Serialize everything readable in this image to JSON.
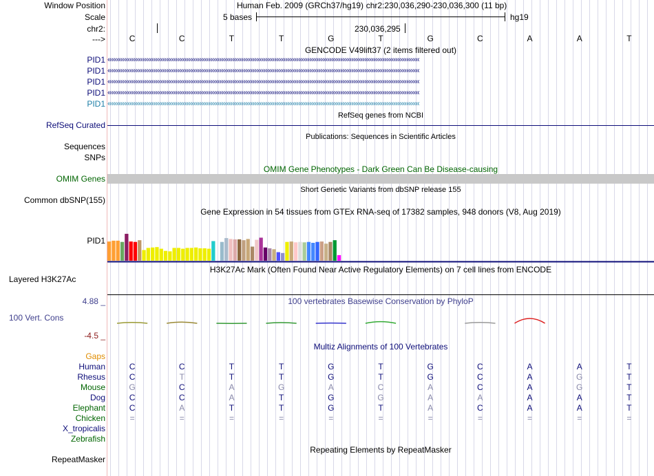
{
  "sidebar": {
    "window_position": "Window Position",
    "scale": "Scale",
    "chrom": "chr2:",
    "strand_arrow": "--->",
    "genes": [
      "PID1",
      "PID1",
      "PID1",
      "PID1",
      "PID1"
    ],
    "refseq": "RefSeq Curated",
    "sequences": "Sequences",
    "snps": "SNPs",
    "omim": "OMIM Genes",
    "dbsnp": "Common dbSNP(155)",
    "gtex_gene": "PID1",
    "h3k27ac": "Layered H3K27Ac",
    "cons_max": "4.88 _",
    "cons_label": "100 Vert. Cons",
    "cons_min": "-4.5 _",
    "gaps": "Gaps",
    "species": [
      "Human",
      "Rhesus",
      "Mouse",
      "Dog",
      "Elephant",
      "Chicken",
      "X_tropicalis",
      "Zebrafish"
    ],
    "repeatmasker": "RepeatMasker"
  },
  "header": {
    "assembly": "Human Feb. 2009 (GRCh37/hg19)",
    "position": "chr2:230,036,290-230,036,300 (11 bp)",
    "scale_text": "5 bases",
    "db": "hg19",
    "coord": "230,036,295"
  },
  "bases": [
    "C",
    "C",
    "T",
    "T",
    "G",
    "T",
    "G",
    "C",
    "A",
    "A",
    "T"
  ],
  "tracks": {
    "gencode_title": "GENCODE V49lift37 (2 items filtered out)",
    "refseq_title": "RefSeq genes from NCBI",
    "pubs_title": "Publications: Sequences in Scientific Articles",
    "omim_title": "OMIM Gene Phenotypes - Dark Green Can Be Disease-causing",
    "dbsnp_title": "Short Genetic Variants from dbSNP release 155",
    "gtex_title": "Gene Expression in 54 tissues from GTEx RNA-seq of 17382 samples, 948 donors (V8, Aug 2019)",
    "h3k27ac_title": "H3K27Ac Mark (Often Found Near Active Regulatory Elements) on 7 cell lines from ENCODE",
    "cons_title": "100 vertebrates Basewise Conservation by PhyloP",
    "multiz_title": "Multiz Alignments of 100 Vertebrates",
    "rmsk_title": "Repeating Elements by RepeatMasker"
  },
  "alignment": {
    "Human": [
      "C",
      "C",
      "T",
      "T",
      "G",
      "T",
      "G",
      "C",
      "A",
      "A",
      "T"
    ],
    "Rhesus": [
      "C",
      "T",
      "T",
      "T",
      "G",
      "T",
      "G",
      "C",
      "A",
      "G",
      "T"
    ],
    "Mouse": [
      "G",
      "C",
      "A",
      "G",
      "A",
      "C",
      "A",
      "C",
      "A",
      "G",
      "T"
    ],
    "Dog": [
      "C",
      "C",
      "A",
      "T",
      "G",
      "G",
      "A",
      "A",
      "A",
      "A",
      "T"
    ],
    "Elephant": [
      "C",
      "A",
      "T",
      "T",
      "G",
      "T",
      "A",
      "C",
      "A",
      "A",
      "T"
    ],
    "Chicken": [
      "=",
      "=",
      "=",
      "=",
      "=",
      "=",
      "=",
      "=",
      "=",
      "=",
      "="
    ]
  },
  "alignment_faded": {
    "Human": [
      0,
      0,
      0,
      0,
      0,
      0,
      0,
      0,
      0,
      0,
      0
    ],
    "Rhesus": [
      0,
      1,
      0,
      0,
      0,
      0,
      0,
      0,
      0,
      1,
      0
    ],
    "Mouse": [
      1,
      0,
      1,
      1,
      1,
      1,
      1,
      0,
      0,
      1,
      0
    ],
    "Dog": [
      0,
      0,
      1,
      0,
      0,
      1,
      1,
      1,
      0,
      0,
      0
    ],
    "Elephant": [
      0,
      1,
      0,
      0,
      0,
      0,
      1,
      0,
      0,
      0,
      0
    ],
    "Chicken": [
      1,
      1,
      1,
      1,
      1,
      1,
      1,
      1,
      1,
      1,
      1
    ]
  },
  "colors": {
    "gencode": "#0c0c78",
    "gencode_last": "#1e7fa8",
    "refseq": "#0c0c78",
    "omim_bar": "#c8c8c8",
    "omim_label": "#006400",
    "cons_label": "#3e3e8c",
    "cons_min": "#8b1a1a",
    "gaps": "#e08c00",
    "species": "#0c0c78",
    "grid": "#d8d8e8",
    "divider": "#f0b8b8"
  },
  "gtex": {
    "values": [
      0.45,
      0.47,
      0.47,
      0.44,
      0.63,
      0.45,
      0.44,
      0.48,
      0.25,
      0.3,
      0.31,
      0.32,
      0.28,
      0.23,
      0.22,
      0.3,
      0.3,
      0.28,
      0.3,
      0.3,
      0.31,
      0.29,
      0.29,
      0.28,
      0.46,
      0.0,
      0.44,
      0.53,
      0.51,
      0.5,
      0.5,
      0.48,
      0.51,
      0.33,
      0.49,
      0.54,
      0.31,
      0.29,
      0.27,
      0.2,
      0.18,
      0.44,
      0.45,
      0.43,
      0.44,
      0.43,
      0.44,
      0.42,
      0.44,
      0.45,
      0.4,
      0.44,
      0.48,
      0.13
    ],
    "colors": [
      "#ff9f33",
      "#ff9f33",
      "#ff9f33",
      "#68a860",
      "#8b1c62",
      "#ff0000",
      "#ff0000",
      "#c09868",
      "#eeee00",
      "#eeee00",
      "#eeee00",
      "#eeee00",
      "#eeee00",
      "#eeee00",
      "#eeee00",
      "#eeee00",
      "#eeee00",
      "#eeee00",
      "#eeee00",
      "#eeee00",
      "#eeee00",
      "#eeee00",
      "#eeee00",
      "#eeee00",
      "#22cccc",
      "#ffffff",
      "#99bbcc",
      "#aabbcc",
      "#f0c0c0",
      "#ddaaaa",
      "#8c6840",
      "#c0a080",
      "#c8a878",
      "#aa8866",
      "#f0c8c8",
      "#aa3399",
      "#660066",
      "#aa88aa",
      "#c8b080",
      "#5050ff",
      "#9090cc",
      "#eeee00",
      "#c8a878",
      "#ffc8c8",
      "#dddddd",
      "#aacc99",
      "#4488ff",
      "#4488ff",
      "#3366ff",
      "#cca088",
      "#c8b088",
      "#aa8866",
      "#009933",
      "#ff00ff"
    ]
  },
  "conservation": {
    "values": [
      0.06,
      0.09,
      -0.01,
      0.05,
      0.02,
      0.12,
      0.0,
      0.06,
      0.35,
      0.0,
      0.0
    ],
    "colors": [
      "#999933",
      "#998833",
      "#339933",
      "#339933",
      "#3333cc",
      "#33aa33",
      "#999999",
      "#999999",
      "#dd2222",
      "#999999",
      "#999999"
    ]
  }
}
